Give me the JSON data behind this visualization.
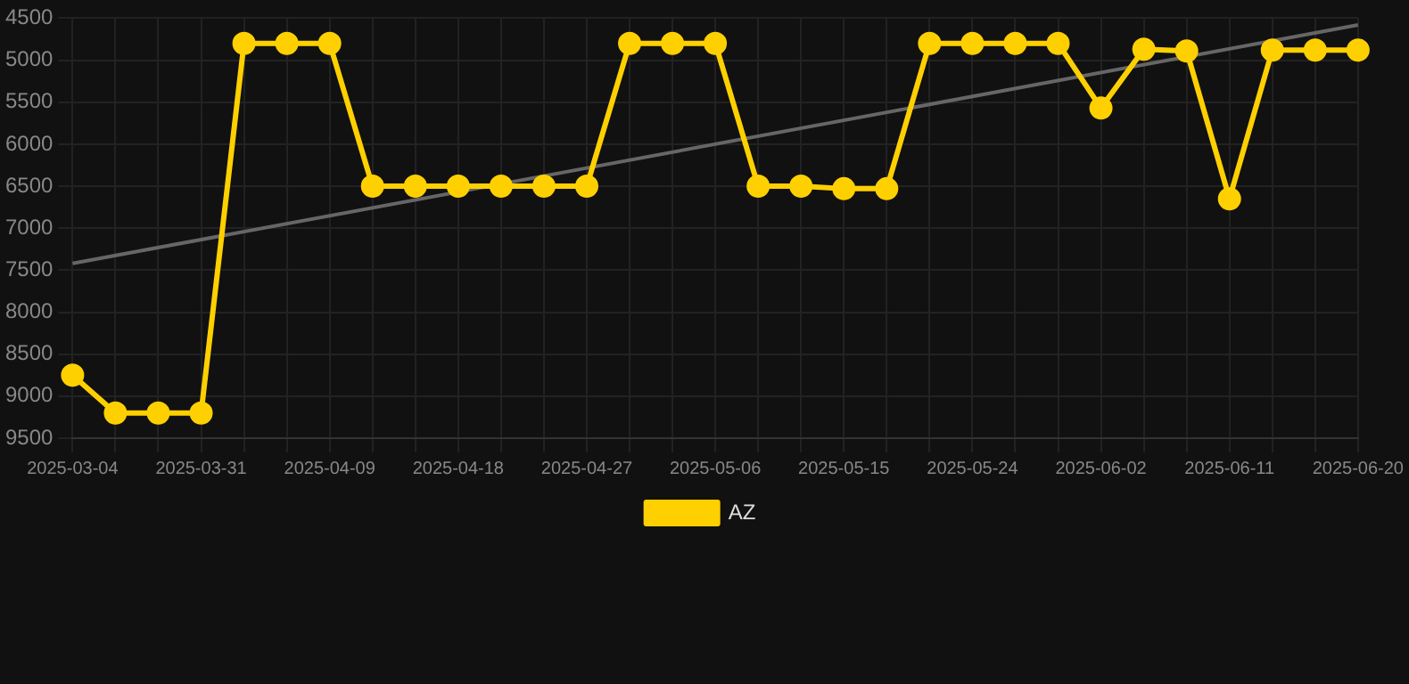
{
  "chart_data": {
    "type": "line",
    "categories": [
      "2025-03-04",
      null,
      null,
      "2025-03-31",
      null,
      null,
      "2025-04-09",
      null,
      null,
      "2025-04-18",
      null,
      null,
      "2025-04-27",
      null,
      null,
      "2025-05-06",
      null,
      null,
      "2025-05-15",
      null,
      null,
      "2025-05-24",
      null,
      null,
      "2025-06-02",
      null,
      null,
      "2025-06-11",
      null,
      null,
      "2025-06-20"
    ],
    "series": [
      {
        "name": "AZ",
        "color": "#ffd000",
        "marker": "circle",
        "values": [
          8750,
          9200,
          9200,
          9200,
          4800,
          4800,
          4800,
          6500,
          6500,
          6500,
          6500,
          6500,
          6500,
          4800,
          4800,
          4800,
          6500,
          6500,
          6530,
          6530,
          4800,
          4800,
          4800,
          4800,
          5570,
          4870,
          4890,
          6650,
          4880,
          4880,
          4880
        ]
      },
      {
        "type": "line",
        "color": "#666666",
        "marker": "none",
        "values": [
          7420,
          null,
          null,
          null,
          null,
          null,
          null,
          null,
          null,
          null,
          null,
          null,
          null,
          null,
          null,
          null,
          null,
          null,
          null,
          null,
          null,
          null,
          null,
          null,
          null,
          null,
          null,
          null,
          null,
          null,
          4580
        ]
      }
    ],
    "ylim": [
      9500,
      4500
    ],
    "yticks": [
      4500,
      5000,
      5500,
      6000,
      6500,
      7000,
      7500,
      8000,
      8500,
      9000,
      9500
    ],
    "grid": true,
    "legend": "bottom"
  }
}
